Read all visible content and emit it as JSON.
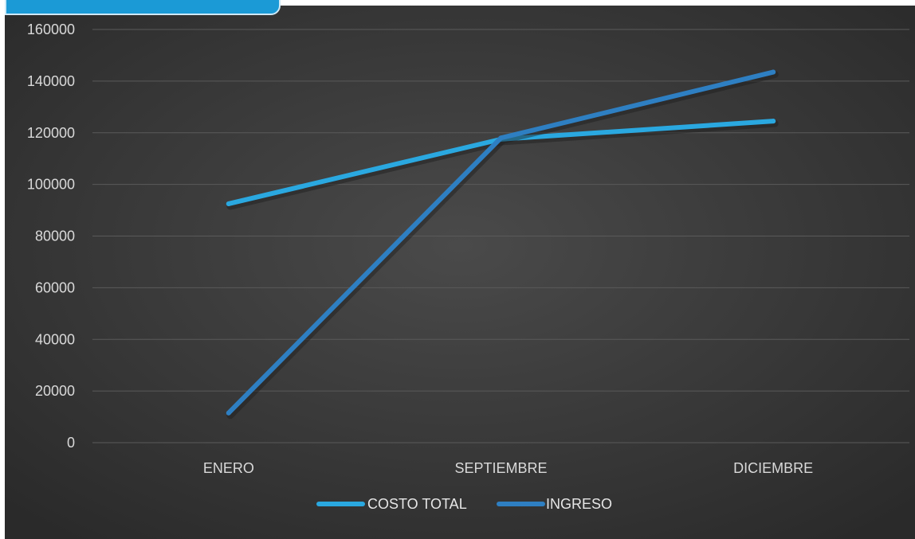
{
  "chart_data": {
    "type": "line",
    "categories": [
      "ENERO",
      "SEPTIEMBRE",
      "DICIEMBRE"
    ],
    "series": [
      {
        "name": "COSTO TOTAL",
        "values": [
          92500,
          117500,
          124500
        ],
        "color": "#2aa8e0"
      },
      {
        "name": "INGRESO",
        "values": [
          11500,
          118000,
          143500
        ],
        "color": "#2e7fc2"
      }
    ],
    "ylim": [
      0,
      160000
    ],
    "yticks": [
      0,
      20000,
      40000,
      60000,
      80000,
      100000,
      120000,
      140000,
      160000
    ],
    "title": "",
    "xlabel": "",
    "ylabel": "",
    "grid": true,
    "legend": "bottom",
    "background": "#3a3a3a"
  }
}
